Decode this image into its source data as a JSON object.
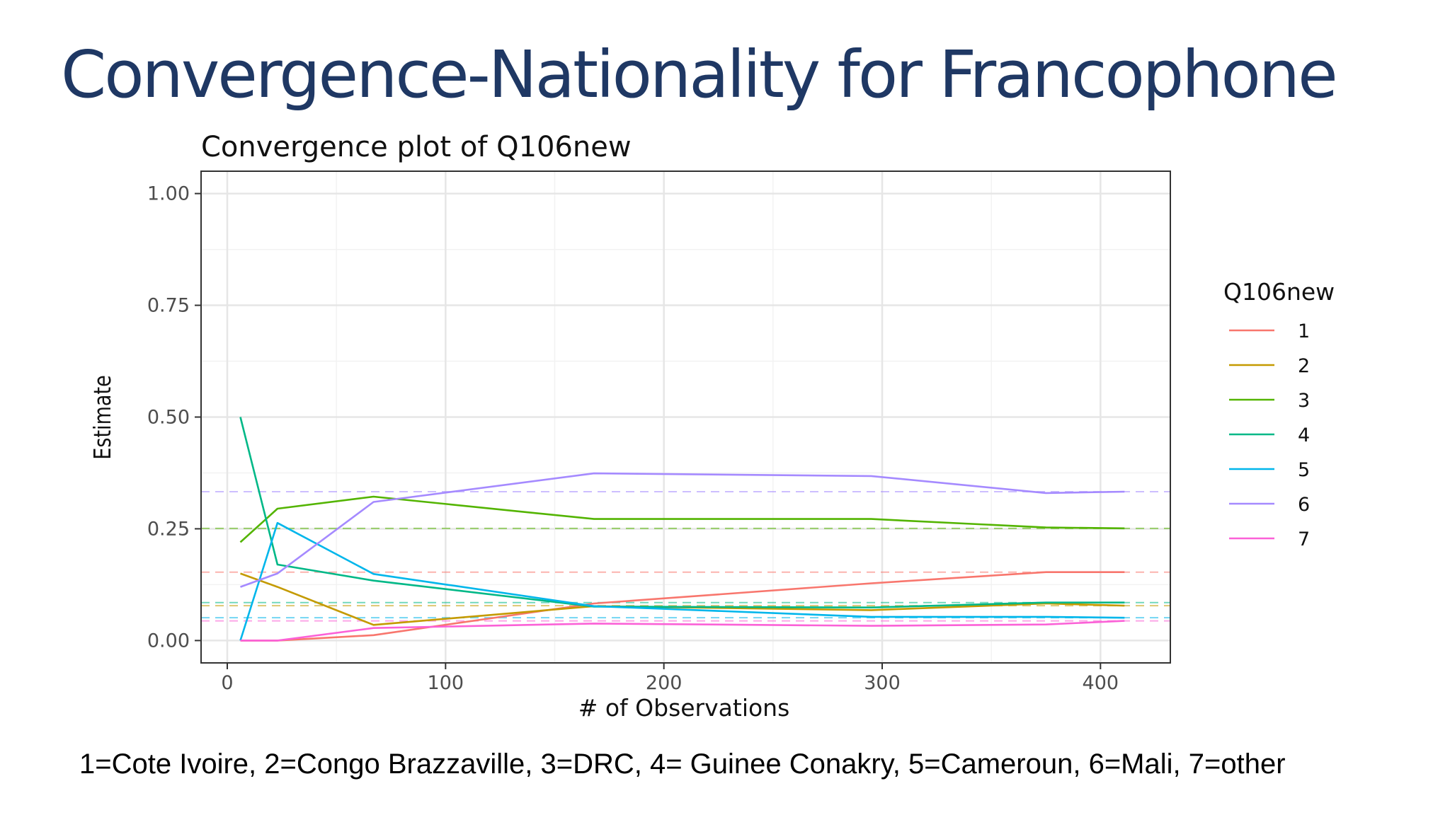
{
  "slide": {
    "title": "Convergence-Nationality for Francophone",
    "footnote": "1=Cote Ivoire, 2=Congo Brazzaville, 3=DRC, 4= Guinee Conakry, 5=Cameroun, 6=Mali, 7=other"
  },
  "chart_data": {
    "type": "line",
    "title": "Convergence plot of Q106new",
    "xlabel": "# of Observations",
    "ylabel": "Estimate",
    "xlim": [
      -12,
      432
    ],
    "ylim": [
      -0.05,
      1.05
    ],
    "xticks": [
      0,
      100,
      200,
      300,
      400
    ],
    "xtick_labels": [
      "0",
      "100",
      "200",
      "300",
      "400"
    ],
    "yticks": [
      0,
      0.25,
      0.5,
      0.75,
      1.0
    ],
    "ytick_labels": [
      "0.00",
      "0.25",
      "0.50",
      "0.75",
      "1.00"
    ],
    "grid": true,
    "legend": {
      "title": "Q106new",
      "position": "right"
    },
    "x": [
      6,
      23,
      67,
      168,
      295,
      375,
      411
    ],
    "series": [
      {
        "name": "1",
        "color": "#F8766D",
        "final": 0.153,
        "values": [
          0,
          0,
          0.012,
          0.083,
          0.128,
          0.153,
          0.153
        ]
      },
      {
        "name": "2",
        "color": "#C49A00",
        "final": 0.078,
        "values": [
          0.15,
          0.12,
          0.035,
          0.077,
          0.068,
          0.083,
          0.078
        ]
      },
      {
        "name": "3",
        "color": "#53B400",
        "final": 0.251,
        "values": [
          0.22,
          0.295,
          0.322,
          0.272,
          0.272,
          0.253,
          0.251
        ]
      },
      {
        "name": "4",
        "color": "#00B887",
        "final": 0.085,
        "values": [
          0.5,
          0.17,
          0.134,
          0.076,
          0.074,
          0.085,
          0.085
        ]
      },
      {
        "name": "5",
        "color": "#00B6EB",
        "final": 0.051,
        "values": [
          0,
          0.263,
          0.149,
          0.077,
          0.053,
          0.053,
          0.051
        ]
      },
      {
        "name": "6",
        "color": "#A58AFF",
        "final": 0.333,
        "values": [
          0.12,
          0.15,
          0.31,
          0.374,
          0.368,
          0.33,
          0.333
        ]
      },
      {
        "name": "7",
        "color": "#FB61D7",
        "final": 0.044,
        "values": [
          0,
          0,
          0.028,
          0.038,
          0.033,
          0.036,
          0.044
        ]
      }
    ]
  }
}
